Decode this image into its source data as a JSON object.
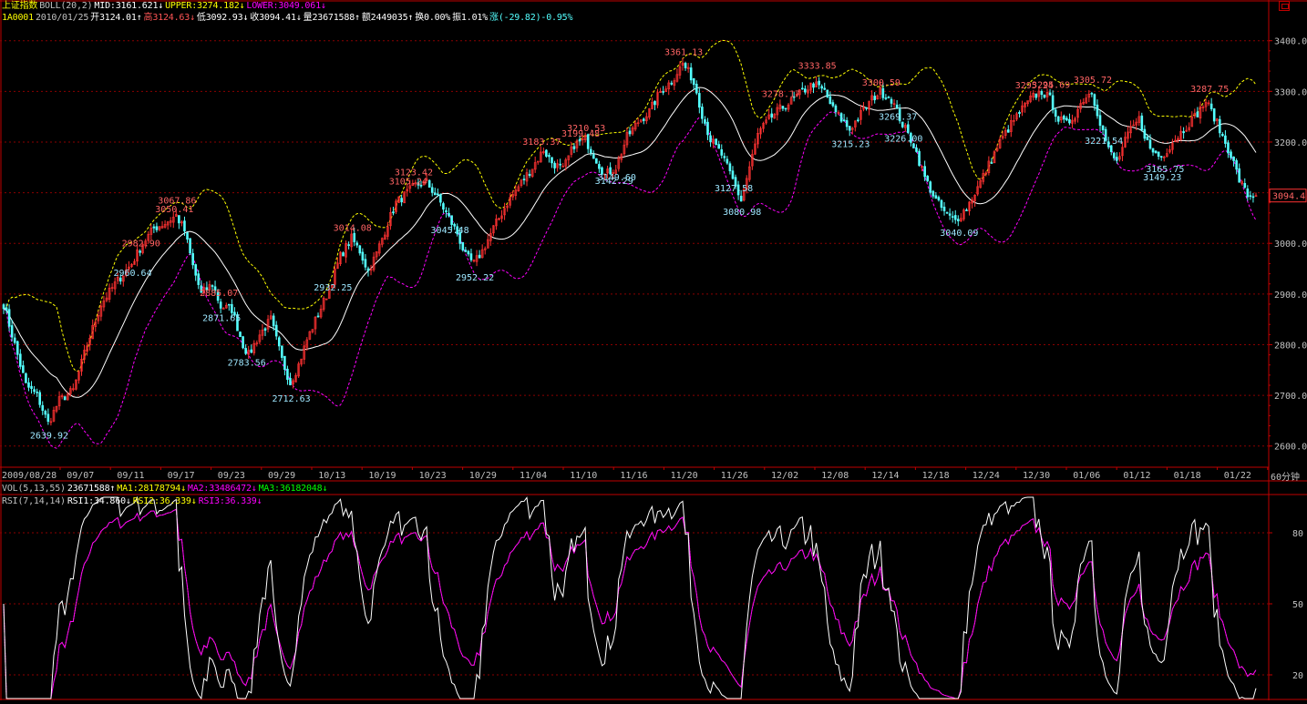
{
  "header": {
    "line1": [
      {
        "text": "上证指数",
        "color": "#ffff00"
      },
      {
        "text": "BOLL(20,2)",
        "color": "#c0c0c0"
      },
      {
        "text": "MID:3161.621↓",
        "color": "#ffffff"
      },
      {
        "text": "UPPER:3274.182↓",
        "color": "#ffff00"
      },
      {
        "text": "LOWER:3049.061↓",
        "color": "#ff00ff"
      }
    ],
    "line2": [
      {
        "text": "1A0001",
        "color": "#ffff00"
      },
      {
        "text": "2010/01/25",
        "color": "#c0c0c0"
      },
      {
        "text": "开3124.01↑",
        "color": "#ffffff"
      },
      {
        "text": "高3124.63↓",
        "color": "#ff5555"
      },
      {
        "text": "低3092.93↓",
        "color": "#ffffff"
      },
      {
        "text": "收3094.41↓",
        "color": "#ffffff"
      },
      {
        "text": "量23671588↑",
        "color": "#ffffff"
      },
      {
        "text": "额2449035↑",
        "color": "#ffffff"
      },
      {
        "text": "换0.00%",
        "color": "#ffffff"
      },
      {
        "text": "振1.01%",
        "color": "#ffffff"
      },
      {
        "text": "涨(-29.82)-0.95%",
        "color": "#54ffff"
      }
    ],
    "vol_line": [
      {
        "text": "VOL(5,13,55)",
        "color": "#c0c0c0"
      },
      {
        "text": "23671588↑",
        "color": "#ffffff"
      },
      {
        "text": "MA1:28178794↓",
        "color": "#ffff00"
      },
      {
        "text": "MA2:33486472↓",
        "color": "#ff00ff"
      },
      {
        "text": "MA3:36182048↓",
        "color": "#00ff00"
      }
    ],
    "rsi_line": [
      {
        "text": "RSI(7,14,14)",
        "color": "#c0c0c0"
      },
      {
        "text": "RSI1:34.860↓",
        "color": "#ffffff"
      },
      {
        "text": "RSI2:36.339↓",
        "color": "#ffff00"
      },
      {
        "text": "RSI3:36.339↓",
        "color": "#ff00ff"
      }
    ]
  },
  "period_label": "60分钟",
  "last_price_label": "3094.4",
  "corner_icon": "window-toggle-icon",
  "colors": {
    "up": "#ff3232",
    "down": "#54ffff",
    "mid": "#ffffff",
    "upper": "#ffff00",
    "lower": "#ff00ff",
    "grid": "#8b0000",
    "frame": "#c00000",
    "axis_text": "#c0c0c0"
  },
  "chart_data": [
    {
      "type": "candlestick",
      "title": "上证指数",
      "interval": "60分钟",
      "ylim": [
        2560,
        3430
      ],
      "yticks": [
        2600,
        2700,
        2800,
        2900,
        3000,
        3100,
        3200,
        3300,
        3400
      ],
      "x_ticks": [
        "2009/08/28",
        "09/07",
        "09/11",
        "09/17",
        "09/23",
        "09/29",
        "10/13",
        "10/19",
        "10/23",
        "10/29",
        "11/04",
        "11/10",
        "11/16",
        "11/20",
        "11/26",
        "12/02",
        "12/08",
        "12/14",
        "12/18",
        "12/24",
        "12/30",
        "01/06",
        "01/12",
        "01/18",
        "01/22"
      ],
      "indicator": "BOLL(20,2)",
      "close_anchors": [
        [
          0,
          2880
        ],
        [
          3,
          2820
        ],
        [
          8,
          2720
        ],
        [
          12,
          2700
        ],
        [
          16,
          2645
        ],
        [
          20,
          2690
        ],
        [
          25,
          2710
        ],
        [
          30,
          2800
        ],
        [
          35,
          2880
        ],
        [
          40,
          2920
        ],
        [
          46,
          2960
        ],
        [
          50,
          3000
        ],
        [
          54,
          3030
        ],
        [
          58,
          3040
        ],
        [
          62,
          3055
        ],
        [
          65,
          3025
        ],
        [
          68,
          2955
        ],
        [
          71,
          2900
        ],
        [
          75,
          2920
        ],
        [
          78,
          2875
        ],
        [
          82,
          2870
        ],
        [
          86,
          2800
        ],
        [
          88,
          2780
        ],
        [
          92,
          2820
        ],
        [
          96,
          2850
        ],
        [
          100,
          2770
        ],
        [
          103,
          2725
        ],
        [
          106,
          2760
        ],
        [
          109,
          2810
        ],
        [
          113,
          2860
        ],
        [
          117,
          2910
        ],
        [
          121,
          2975
        ],
        [
          125,
          3010
        ],
        [
          128,
          2985
        ],
        [
          131,
          2945
        ],
        [
          134,
          2980
        ],
        [
          138,
          3040
        ],
        [
          141,
          3080
        ],
        [
          144,
          3095
        ],
        [
          148,
          3115
        ],
        [
          152,
          3120
        ],
        [
          156,
          3090
        ],
        [
          159,
          3060
        ],
        [
          163,
          3020
        ],
        [
          166,
          2975
        ],
        [
          169,
          2960
        ],
        [
          172,
          2985
        ],
        [
          176,
          3030
        ],
        [
          181,
          3080
        ],
        [
          186,
          3120
        ],
        [
          190,
          3150
        ],
        [
          194,
          3185
        ],
        [
          197,
          3160
        ],
        [
          201,
          3145
        ],
        [
          205,
          3195
        ],
        [
          209,
          3205
        ],
        [
          213,
          3165
        ],
        [
          216,
          3135
        ],
        [
          220,
          3150
        ],
        [
          224,
          3210
        ],
        [
          228,
          3240
        ],
        [
          232,
          3260
        ],
        [
          236,
          3300
        ],
        [
          240,
          3320
        ],
        [
          244,
          3355
        ],
        [
          247,
          3330
        ],
        [
          249,
          3300
        ],
        [
          251,
          3255
        ],
        [
          254,
          3205
        ],
        [
          258,
          3175
        ],
        [
          262,
          3125
        ],
        [
          265,
          3085
        ],
        [
          268,
          3150
        ],
        [
          271,
          3215
        ],
        [
          275,
          3245
        ],
        [
          279,
          3265
        ],
        [
          283,
          3280
        ],
        [
          287,
          3300
        ],
        [
          291,
          3315
        ],
        [
          295,
          3300
        ],
        [
          298,
          3265
        ],
        [
          301,
          3245
        ],
        [
          304,
          3225
        ],
        [
          308,
          3255
        ],
        [
          312,
          3285
        ],
        [
          315,
          3300
        ],
        [
          319,
          3285
        ],
        [
          323,
          3235
        ],
        [
          327,
          3195
        ],
        [
          331,
          3130
        ],
        [
          335,
          3085
        ],
        [
          339,
          3055
        ],
        [
          342,
          3045
        ],
        [
          346,
          3070
        ],
        [
          350,
          3110
        ],
        [
          354,
          3155
        ],
        [
          358,
          3200
        ],
        [
          362,
          3235
        ],
        [
          366,
          3265
        ],
        [
          370,
          3290
        ],
        [
          373,
          3300
        ],
        [
          376,
          3285
        ],
        [
          379,
          3245
        ],
        [
          382,
          3235
        ],
        [
          385,
          3255
        ],
        [
          388,
          3285
        ],
        [
          391,
          3300
        ],
        [
          394,
          3240
        ],
        [
          397,
          3185
        ],
        [
          400,
          3160
        ],
        [
          404,
          3215
        ],
        [
          408,
          3245
        ],
        [
          412,
          3185
        ],
        [
          416,
          3170
        ],
        [
          420,
          3200
        ],
        [
          424,
          3225
        ],
        [
          428,
          3250
        ],
        [
          432,
          3280
        ],
        [
          435,
          3250
        ],
        [
          438,
          3210
        ],
        [
          441,
          3175
        ],
        [
          444,
          3125
        ],
        [
          447,
          3095
        ],
        [
          450,
          3094.41
        ]
      ],
      "marked_levels": [
        {
          "label": "2639.92",
          "kind": "low"
        },
        {
          "label": "2960.64",
          "kind": "low"
        },
        {
          "label": "3050.41",
          "kind": "high"
        },
        {
          "label": "3067.86",
          "kind": "high"
        },
        {
          "label": "2982.90",
          "kind": "high"
        },
        {
          "label": "2871.65",
          "kind": "low"
        },
        {
          "label": "2885.07",
          "kind": "high"
        },
        {
          "label": "2783.56",
          "kind": "low"
        },
        {
          "label": "2712.63",
          "kind": "low"
        },
        {
          "label": "3014.08",
          "kind": "high"
        },
        {
          "label": "2932.25",
          "kind": "low"
        },
        {
          "label": "3105.24",
          "kind": "high"
        },
        {
          "label": "3123.42",
          "kind": "high"
        },
        {
          "label": "3045.48",
          "kind": "low"
        },
        {
          "label": "2952.22",
          "kind": "low"
        },
        {
          "label": "3183.37",
          "kind": "high"
        },
        {
          "label": "3210.53",
          "kind": "high"
        },
        {
          "label": "3199.48",
          "kind": "high"
        },
        {
          "label": "3142.29",
          "kind": "low"
        },
        {
          "label": "3149.60",
          "kind": "low"
        },
        {
          "label": "3127.58",
          "kind": "low"
        },
        {
          "label": "3361.13",
          "kind": "high"
        },
        {
          "label": "3080.98",
          "kind": "low"
        },
        {
          "label": "3278.17",
          "kind": "high"
        },
        {
          "label": "3333.85",
          "kind": "high"
        },
        {
          "label": "3215.23",
          "kind": "low"
        },
        {
          "label": "3226.00",
          "kind": "low"
        },
        {
          "label": "3300.59",
          "kind": "high"
        },
        {
          "label": "3269.37",
          "kind": "low"
        },
        {
          "label": "3040.09",
          "kind": "low"
        },
        {
          "label": "3295.24",
          "kind": "high"
        },
        {
          "label": "3295.69",
          "kind": "high"
        },
        {
          "label": "3221.54",
          "kind": "low"
        },
        {
          "label": "3305.72",
          "kind": "high"
        },
        {
          "label": "3149.23",
          "kind": "low"
        },
        {
          "label": "3165.75",
          "kind": "low"
        },
        {
          "label": "3287.75",
          "kind": "high"
        }
      ]
    },
    {
      "type": "line",
      "title": "RSI(7,14,14)",
      "ylim": [
        10,
        95
      ],
      "yticks": [
        20,
        50,
        80
      ],
      "series": [
        {
          "name": "RSI1",
          "color": "#ffffff",
          "last": 34.86
        },
        {
          "name": "RSI2",
          "color": "#ffff00",
          "last": 36.339
        },
        {
          "name": "RSI3",
          "color": "#ff00ff",
          "last": 36.339
        }
      ]
    }
  ]
}
